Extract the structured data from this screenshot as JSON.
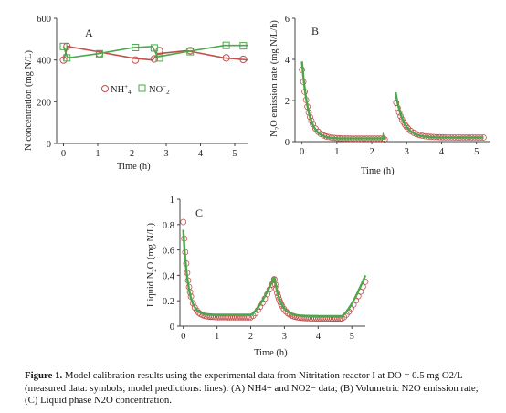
{
  "caption": {
    "label": "Figure 1.",
    "text": "Model calibration results using the experimental data from Nitritation reactor I at DO = 0.5 mg O2/L (measured data: symbols; model predictions: lines): (A) NH4+ and NO2− data; (B) Volumetric N2O emission rate; (C) Liquid phase N2O concentration."
  },
  "colors": {
    "nh4": "#c0504d",
    "no2": "#4aa84a",
    "axis": "#444444"
  },
  "chart_data": [
    {
      "panel": "A",
      "type": "line",
      "xlabel": "Time (h)",
      "ylabel": "N concentration (mg N/L)",
      "xlim": [
        -0.2,
        5.4
      ],
      "ylim": [
        0,
        600
      ],
      "xticks": [
        0,
        1,
        2,
        3,
        4,
        5
      ],
      "yticks": [
        0,
        200,
        400,
        600
      ],
      "legend": "middle-left",
      "series": [
        {
          "name": "NH4+",
          "marker": "circle",
          "points": [
            [
              0,
              400
            ],
            [
              0.1,
              465
            ],
            [
              1.05,
              430
            ],
            [
              2.1,
              400
            ],
            [
              2.65,
              405
            ],
            [
              2.8,
              445
            ],
            [
              3.7,
              445
            ],
            [
              4.75,
              410
            ],
            [
              5.25,
              403
            ]
          ],
          "line": [
            [
              0,
              400
            ],
            [
              0.12,
              465
            ],
            [
              1.0,
              440
            ],
            [
              2.05,
              408
            ],
            [
              2.6,
              400
            ],
            [
              2.75,
              430
            ],
            [
              3.6,
              445
            ],
            [
              4.7,
              410
            ],
            [
              5.4,
              400
            ]
          ]
        },
        {
          "name": "NO2−",
          "marker": "square",
          "points": [
            [
              0,
              465
            ],
            [
              0.1,
              410
            ],
            [
              1.05,
              430
            ],
            [
              2.1,
              460
            ],
            [
              2.65,
              458
            ],
            [
              2.8,
              410
            ],
            [
              3.7,
              440
            ],
            [
              4.75,
              470
            ],
            [
              5.25,
              468
            ]
          ],
          "line": [
            [
              0,
              465
            ],
            [
              0.12,
              410
            ],
            [
              1.0,
              430
            ],
            [
              2.05,
              460
            ],
            [
              2.6,
              465
            ],
            [
              2.75,
              415
            ],
            [
              3.6,
              440
            ],
            [
              4.7,
              470
            ],
            [
              5.4,
              470
            ]
          ]
        }
      ]
    },
    {
      "panel": "B",
      "type": "scatter",
      "xlabel": "Time (h)",
      "ylabel": "N2O emission rate (mg N/L/h)",
      "xlim": [
        -0.2,
        5.4
      ],
      "ylim": [
        0,
        6
      ],
      "xticks": [
        0,
        1,
        2,
        3,
        4,
        5
      ],
      "yticks": [
        0,
        2,
        4,
        6
      ],
      "series": [
        {
          "name": "measured",
          "marker": "circle",
          "segments": [
            {
              "start": 0.0,
              "end": 2.32,
              "peak": 3.5,
              "base": 0.15,
              "tau": 0.2
            },
            {
              "start": 2.7,
              "end": 5.2,
              "peak": 1.9,
              "base": 0.2,
              "tau": 0.25
            }
          ]
        },
        {
          "name": "model",
          "marker": "line",
          "segments": [
            {
              "start": 0.0,
              "end": 2.32,
              "peak": 3.9,
              "base": 0.15,
              "tau": 0.18
            },
            {
              "start": 2.68,
              "end": 5.2,
              "peak": 2.4,
              "base": 0.2,
              "tau": 0.22
            }
          ]
        }
      ]
    },
    {
      "panel": "C",
      "type": "scatter",
      "xlabel": "Time (h)",
      "ylabel": "Liquid N2O (mg N/L)",
      "xlim": [
        -0.1,
        5.4
      ],
      "ylim": [
        0,
        1
      ],
      "xticks": [
        0,
        1,
        2,
        3,
        4,
        5
      ],
      "yticks": [
        0,
        0.2,
        0.4,
        0.6,
        0.8,
        1
      ],
      "series": [
        {
          "name": "measured",
          "marker": "circle",
          "segments": [
            {
              "start": 0.0,
              "end": 2.0,
              "peak": 0.82,
              "base": 0.07,
              "tau": 0.15,
              "rise_end": 2.7,
              "rise_peak": 0.37
            },
            {
              "start": 2.7,
              "end": 4.7,
              "peak": 0.37,
              "base": 0.06,
              "tau": 0.2,
              "rise_end": 5.4,
              "rise_peak": 0.35
            }
          ]
        },
        {
          "name": "model",
          "marker": "line",
          "segments": [
            {
              "start": 0.0,
              "end": 2.0,
              "peak": 0.76,
              "base": 0.09,
              "tau": 0.14,
              "rise_end": 2.7,
              "rise_peak": 0.39
            },
            {
              "start": 2.7,
              "end": 4.7,
              "peak": 0.39,
              "base": 0.08,
              "tau": 0.18,
              "rise_end": 5.4,
              "rise_peak": 0.4
            }
          ]
        }
      ]
    }
  ]
}
